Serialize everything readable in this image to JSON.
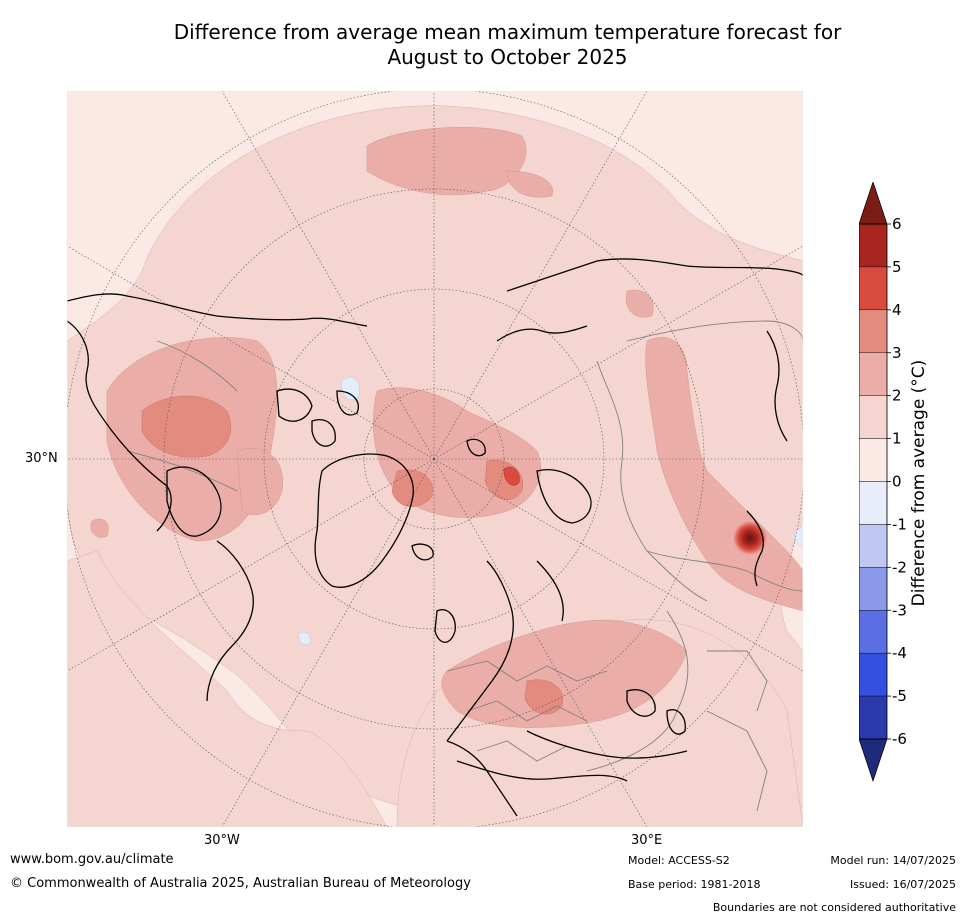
{
  "title": {
    "line1": "Difference from average mean maximum temperature forecast for",
    "line2": "August to October 2025"
  },
  "map": {
    "projection": "north-polar-stereographic",
    "lat_labels": [
      "30°N"
    ],
    "lon_labels": [
      "30°W",
      "30°E"
    ],
    "colors": {
      "ocean_background": "#fbe9e6",
      "anomaly_1_2": "#f4d5d0",
      "anomaly_2_3": "#ebada7",
      "anomaly_3_4": "#e48b80",
      "anomaly_4_5": "#d94a3f",
      "anomaly_5_6": "#a8241e",
      "anomaly_neg": "#e5ecfb",
      "coastline": "#000000",
      "borders": "#808080"
    }
  },
  "colorbar": {
    "label": "Difference from average (°C)",
    "ticks": [
      "6",
      "5",
      "4",
      "3",
      "2",
      "1",
      "0",
      "-1",
      "-2",
      "-3",
      "-4",
      "-5",
      "-6"
    ],
    "bins": [
      {
        "range": "5 to 6",
        "color": "#a8241e"
      },
      {
        "range": "4 to 5",
        "color": "#d94a3f"
      },
      {
        "range": "3 to 4",
        "color": "#e48b80"
      },
      {
        "range": "2 to 3",
        "color": "#ebada7"
      },
      {
        "range": "1 to 2",
        "color": "#f4d5d0"
      },
      {
        "range": "0 to 1",
        "color": "#fbe9e6"
      },
      {
        "range": "-1 to 0",
        "color": "#e8ecfb"
      },
      {
        "range": "-2 to -1",
        "color": "#c0c8f2"
      },
      {
        "range": "-3 to -2",
        "color": "#8b99ea"
      },
      {
        "range": "-4 to -3",
        "color": "#5b6fe2"
      },
      {
        "range": "-5 to -4",
        "color": "#3450e0"
      },
      {
        "range": "-6 to -5",
        "color": "#2a3aad"
      }
    ],
    "over_color": "#7a1d16",
    "under_color": "#1f2a7a"
  },
  "footer": {
    "url": "www.bom.gov.au/climate",
    "copyright": "© Commonwealth of Australia 2025, Australian Bureau of Meteorology",
    "model": "Model: ACCESS-S2",
    "base_period": "Base period: 1981-2018",
    "model_run": "Model run: 14/07/2025",
    "issued": "Issued: 16/07/2025",
    "disclaimer": "Boundaries are not considered authoritative"
  }
}
